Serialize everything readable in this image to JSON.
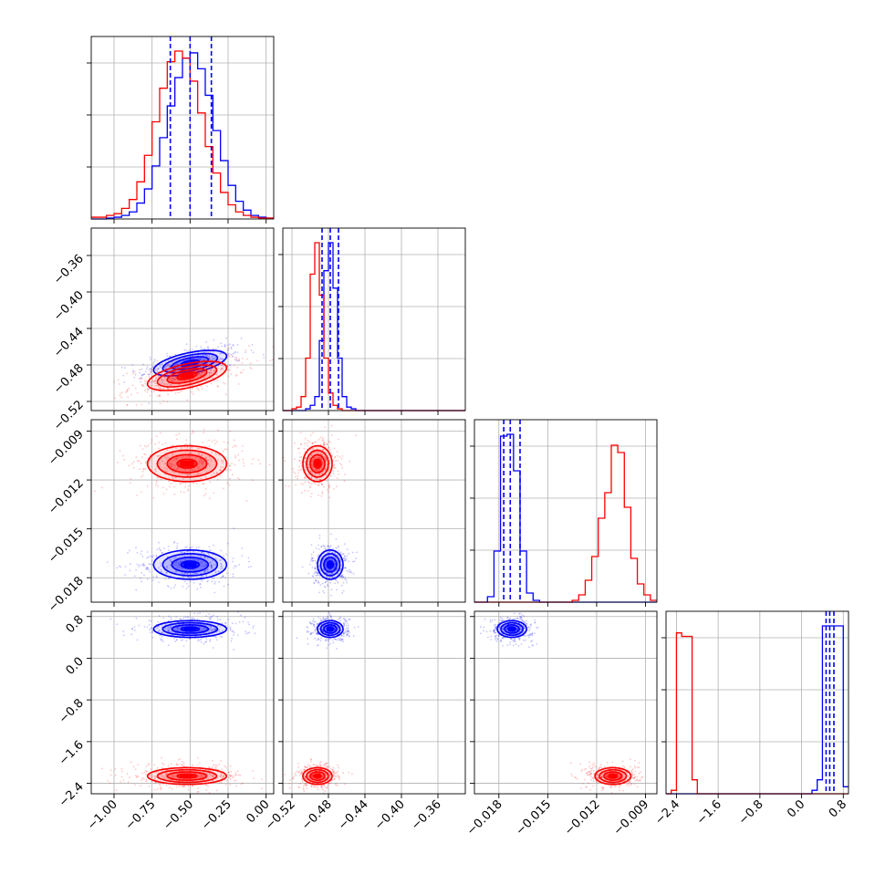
{
  "chart_data": {
    "type": "corner",
    "grid": true,
    "series": [
      {
        "color": "#0000ff",
        "means": [
          -0.5,
          -0.478,
          -0.0172,
          0.56
        ],
        "sds": [
          0.12,
          0.007,
          0.00045,
          0.08
        ],
        "quantiles": [
          [
            -0.63,
            -0.5,
            -0.36
          ],
          [
            -0.487,
            -0.478,
            -0.469
          ],
          [
            -0.0177,
            -0.0173,
            -0.0167
          ],
          [
            0.47,
            0.54,
            0.62
          ]
        ]
      },
      {
        "color": "#ff0000",
        "means": [
          -0.52,
          -0.492,
          -0.011,
          -2.26
        ],
        "sds": [
          0.13,
          0.008,
          0.00055,
          0.08
        ],
        "quantiles": []
      }
    ],
    "correlations": [
      [
        0,
        1,
        0.55
      ],
      [
        0,
        2,
        0.0
      ],
      [
        0,
        3,
        0.0
      ],
      [
        1,
        2,
        0.0
      ],
      [
        1,
        3,
        0.0
      ],
      [
        2,
        3,
        0.0
      ]
    ],
    "hist_counts": {
      "p0": {
        "edges": [
          -1.15,
          -1.1,
          -1.05,
          -1.0,
          -0.95,
          -0.9,
          -0.85,
          -0.8,
          -0.75,
          -0.7,
          -0.65,
          -0.6,
          -0.55,
          -0.5,
          -0.45,
          -0.4,
          -0.35,
          -0.3,
          -0.25,
          -0.2,
          -0.15,
          -0.1,
          -0.05,
          0.0,
          0.05
        ],
        "blue": [
          0,
          0,
          0.5,
          1,
          2,
          4,
          9,
          17,
          30,
          46,
          64,
          80,
          91,
          94,
          85,
          70,
          50,
          33,
          19,
          10,
          5,
          2,
          1,
          0.5
        ],
        "red": [
          1,
          1,
          2,
          3,
          6,
          11,
          21,
          36,
          55,
          74,
          89,
          95,
          91,
          78,
          60,
          41,
          26,
          15,
          8,
          4,
          2,
          1,
          0.5,
          0.5
        ]
      },
      "p1": {
        "edges": [
          -0.53,
          -0.525,
          -0.52,
          -0.515,
          -0.51,
          -0.505,
          -0.5,
          -0.495,
          -0.49,
          -0.485,
          -0.48,
          -0.475,
          -0.47,
          -0.465,
          -0.46,
          -0.455,
          -0.45,
          -0.445,
          -0.44,
          -0.43,
          -0.42,
          -0.41,
          -0.4,
          -0.39,
          -0.38,
          -0.37,
          -0.36,
          -0.35,
          -0.34,
          -0.33
        ],
        "blue": [
          0,
          0,
          0,
          0,
          0,
          1,
          3,
          8,
          40,
          80,
          96,
          70,
          30,
          8,
          2,
          1,
          0,
          0,
          0,
          0,
          0,
          0,
          0,
          0,
          0,
          0,
          0,
          0,
          0
        ],
        "red": [
          0,
          0,
          1,
          2,
          8,
          30,
          78,
          96,
          66,
          30,
          10,
          3,
          1,
          0,
          0,
          0,
          0,
          0,
          0,
          0,
          0,
          0,
          0,
          0,
          0,
          0,
          0,
          0,
          0
        ]
      },
      "p2": {
        "edges": [
          -0.0195,
          -0.0191,
          -0.0187,
          -0.0183,
          -0.0179,
          -0.0175,
          -0.0171,
          -0.0167,
          -0.0163,
          -0.0159,
          -0.0155,
          -0.0151,
          -0.0147,
          -0.0143,
          -0.0139,
          -0.0135,
          -0.0131,
          -0.0127,
          -0.0123,
          -0.0119,
          -0.0115,
          -0.0111,
          -0.0107,
          -0.0103,
          -0.0099,
          -0.0095,
          -0.0091,
          -0.0087,
          -0.0083
        ],
        "blue": [
          0,
          0,
          3,
          28,
          91,
          92,
          72,
          28,
          5,
          1,
          0,
          0,
          0,
          0,
          0,
          0,
          0,
          0,
          0,
          0,
          0,
          0,
          0,
          0,
          0,
          0,
          0,
          0
        ],
        "red": [
          0,
          0,
          0,
          0,
          0,
          0,
          0,
          0,
          0,
          0,
          0,
          0,
          0,
          0,
          0,
          1,
          4,
          12,
          25,
          46,
          60,
          86,
          82,
          52,
          24,
          10,
          4,
          1
        ]
      },
      "p3": {
        "edges": [
          -2.6,
          -2.5,
          -2.4,
          -2.3,
          -2.2,
          -2.1,
          -2.0,
          -1.9,
          -1.8,
          -1.7,
          -1.6,
          -1.5,
          -1.4,
          -1.3,
          -1.2,
          -1.1,
          -1.0,
          -0.9,
          -0.8,
          -0.7,
          -0.6,
          -0.5,
          -0.4,
          -0.3,
          -0.2,
          -0.1,
          0.0,
          0.1,
          0.2,
          0.3,
          0.4,
          0.5,
          0.6,
          0.7,
          0.8,
          0.9
        ],
        "blue": [
          0,
          0,
          0,
          0,
          0,
          0,
          0,
          0,
          0,
          0,
          0,
          0,
          0,
          0,
          0,
          0,
          0,
          0,
          0,
          0,
          0,
          0,
          0,
          0,
          0,
          0,
          0,
          0,
          2,
          8,
          96,
          96,
          96,
          96,
          4
        ],
        "red": [
          0,
          2,
          92,
          90,
          90,
          8,
          0,
          0,
          0,
          0,
          0,
          0,
          0,
          0,
          0,
          0,
          0,
          0,
          0,
          0,
          0,
          0,
          0,
          0,
          0,
          0,
          0,
          0,
          0,
          0,
          0,
          0,
          0,
          0,
          0
        ]
      }
    },
    "axes": [
      {
        "range": [
          -1.15,
          0.05
        ],
        "ticks": [
          -1.0,
          -0.75,
          -0.5,
          -0.25,
          0.0
        ],
        "tick_labels": [
          "−1.00",
          "−0.75",
          "−0.50",
          "−0.25",
          "0.00"
        ]
      },
      {
        "range": [
          -0.53,
          -0.33
        ],
        "ticks": [
          -0.52,
          -0.48,
          -0.44,
          -0.4,
          -0.36
        ],
        "tick_labels": [
          "−0.52",
          "−0.48",
          "−0.44",
          "−0.40",
          "−0.36"
        ]
      },
      {
        "range": [
          -0.0195,
          -0.0083
        ],
        "ticks": [
          -0.018,
          -0.015,
          -0.012,
          -0.009
        ],
        "tick_labels": [
          "−0.018",
          "−0.015",
          "−0.012",
          "−0.009"
        ]
      },
      {
        "range": [
          -2.6,
          0.9
        ],
        "ticks": [
          -2.4,
          -1.6,
          -0.8,
          0.0,
          0.8
        ],
        "tick_labels": [
          "−2.4",
          "−1.6",
          "−0.8",
          "0.0",
          "0.8"
        ]
      }
    ]
  }
}
